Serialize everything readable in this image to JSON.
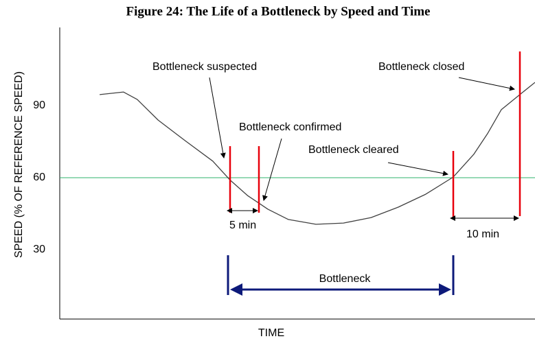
{
  "chart_data": {
    "type": "line",
    "title": "Figure 24: The Life of a Bottleneck by Speed and Time",
    "x_label": "TIME",
    "y_label": "SPEED (% OF REFERENCE SPEED)",
    "xlim": [
      0,
      100
    ],
    "ylim": [
      0,
      120
    ],
    "yticks": [
      30,
      60,
      90
    ],
    "grid": false,
    "reference_value": 60,
    "reference_color": "#2db36b",
    "series": [
      {
        "name": "Speed",
        "color": "#404040",
        "x": [
          8.4,
          13.4,
          16.3,
          20.7,
          26.4,
          32.2,
          35.8,
          39.5,
          43.8,
          48.1,
          53.9,
          59.7,
          65.5,
          71.2,
          77.0,
          82.8,
          87.1,
          90.0,
          92.9,
          97.3,
          100
        ],
        "values": [
          94.6,
          95.7,
          92.6,
          84,
          75.4,
          66.9,
          59.1,
          52.6,
          46.9,
          42.6,
          40.6,
          41.1,
          43.4,
          47.7,
          53.1,
          60.3,
          69.7,
          78.3,
          88.3,
          95.4,
          99.7
        ]
      }
    ],
    "annotations": [
      "Bottleneck suspected",
      "Bottleneck confirmed",
      "Bottleneck cleared",
      "Bottleneck closed",
      "5 min",
      "10 min",
      "Bottleneck"
    ]
  }
}
